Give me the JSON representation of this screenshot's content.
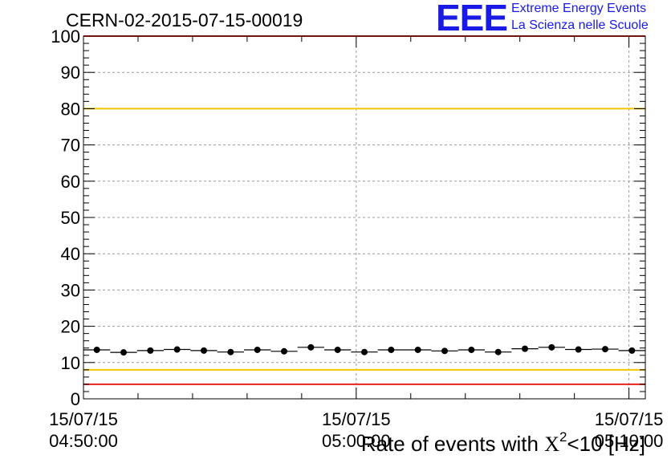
{
  "header": {
    "title": "CERN-02-2015-07-15-00019",
    "logo_text": "EEE",
    "brand_line1": "Extreme Energy Events",
    "brand_line2": "La Scienza nelle Scuole"
  },
  "chart_data": {
    "type": "scatter",
    "title": "CERN-02-2015-07-15-00019",
    "xlabel_prefix": "Rate of events with ",
    "xlabel_symbol": "X",
    "xlabel_sup": "2",
    "xlabel_suffix": "<10 [Hz]",
    "ylim": [
      0,
      100
    ],
    "yticks": [
      "0",
      "10",
      "20",
      "30",
      "40",
      "50",
      "60",
      "70",
      "80",
      "90",
      "100"
    ],
    "xticks": [
      {
        "date": "15/07/15",
        "time": "04:50:00"
      },
      {
        "date": "15/07/15",
        "time": "05:00:00"
      },
      {
        "date": "15/07/15",
        "time": "05:10:00"
      }
    ],
    "grid": true,
    "reference_lines": [
      {
        "y": 100,
        "color": "#e8231f"
      },
      {
        "y": 80,
        "color": "#f2c500"
      },
      {
        "y": 8,
        "color": "#f2c500"
      },
      {
        "y": 4,
        "color": "#e8231f"
      }
    ],
    "series": [
      {
        "values": [
          13.5,
          12.8,
          13.3,
          13.6,
          13.3,
          12.9,
          13.5,
          13.1,
          14.2,
          13.5,
          12.9,
          13.5,
          13.5,
          13.2,
          13.5,
          12.9,
          13.8,
          14.2,
          13.6,
          13.7,
          13.3
        ]
      }
    ],
    "marker_color": "#000000"
  }
}
